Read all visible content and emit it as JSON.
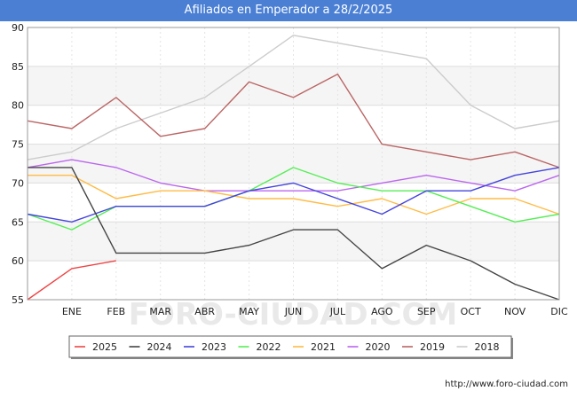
{
  "chart_data": {
    "type": "line",
    "title": "Afiliados en Emperador a 28/2/2025",
    "xlabel": "",
    "ylabel": "",
    "categories": [
      "",
      "ENE",
      "FEB",
      "MAR",
      "ABR",
      "MAY",
      "JUN",
      "JUL",
      "AGO",
      "SEP",
      "OCT",
      "NOV",
      "DIC"
    ],
    "ylim": [
      55,
      90
    ],
    "yticks": [
      55,
      60,
      65,
      70,
      75,
      80,
      85,
      90
    ],
    "grid": true,
    "legend_position": "bottom",
    "series": [
      {
        "name": "2025",
        "color": "#ee4444",
        "values": [
          55,
          59,
          60,
          null,
          null,
          null,
          null,
          null,
          null,
          null,
          null,
          null,
          null
        ]
      },
      {
        "name": "2024",
        "color": "#444444",
        "values": [
          72,
          72,
          61,
          61,
          61,
          62,
          64,
          64,
          59,
          62,
          60,
          57,
          55
        ]
      },
      {
        "name": "2023",
        "color": "#4444dd",
        "values": [
          66,
          65,
          67,
          67,
          67,
          69,
          70,
          68,
          66,
          69,
          69,
          71,
          72
        ]
      },
      {
        "name": "2022",
        "color": "#55ee55",
        "values": [
          66,
          64,
          67,
          67,
          67,
          69,
          72,
          70,
          69,
          69,
          67,
          65,
          66
        ]
      },
      {
        "name": "2021",
        "color": "#ffbb44",
        "values": [
          71,
          71,
          68,
          69,
          69,
          68,
          68,
          67,
          68,
          66,
          68,
          68,
          66
        ]
      },
      {
        "name": "2020",
        "color": "#bb66ee",
        "values": [
          72,
          73,
          72,
          70,
          69,
          69,
          69,
          69,
          70,
          71,
          70,
          69,
          71
        ]
      },
      {
        "name": "2019",
        "color": "#bb6666",
        "values": [
          78,
          77,
          81,
          76,
          77,
          83,
          81,
          84,
          75,
          74,
          73,
          74,
          72
        ]
      },
      {
        "name": "2018",
        "color": "#cccccc",
        "values": [
          73,
          74,
          77,
          79,
          81,
          85,
          89,
          88,
          87,
          86,
          80,
          77,
          78
        ]
      }
    ]
  },
  "footer": {
    "source": "http://www.foro-ciudad.com",
    "watermark": "FORO-CIUDAD.COM"
  }
}
